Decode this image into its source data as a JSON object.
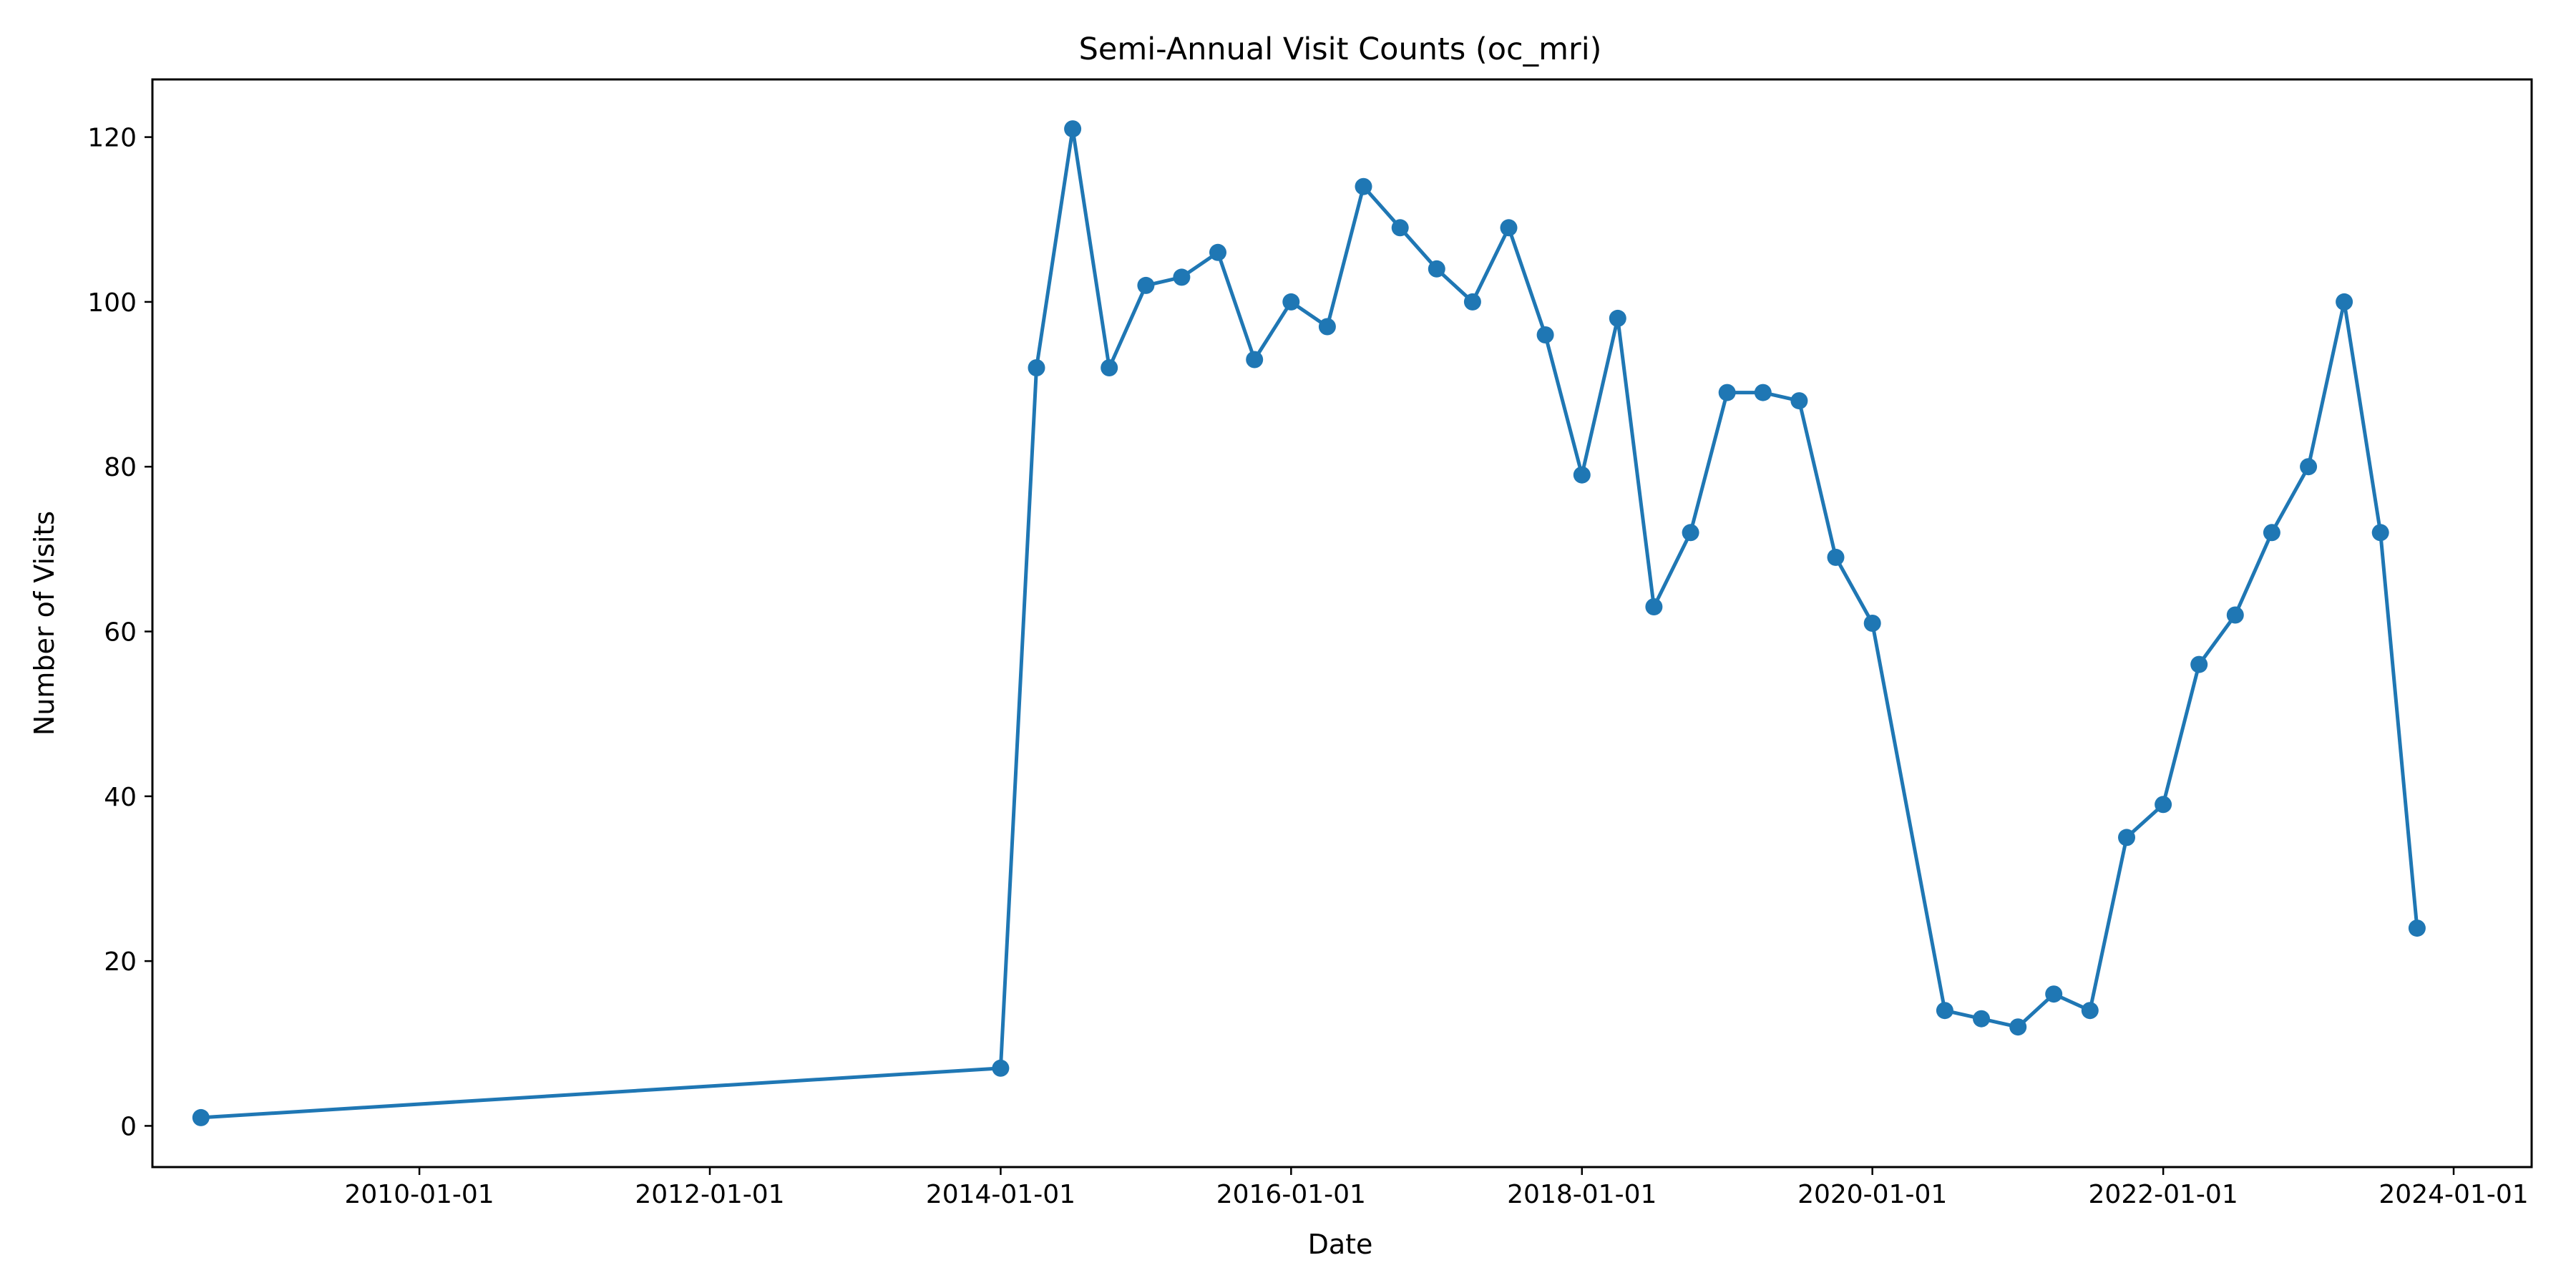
{
  "chart_data": {
    "type": "line",
    "title": "Semi-Annual Visit Counts (oc_mri)",
    "xlabel": "Date",
    "ylabel": "Number of Visits",
    "color": "#1f77b4",
    "x_tick_labels": [
      "2010-01-01",
      "2012-01-01",
      "2014-01-01",
      "2016-01-01",
      "2018-01-01",
      "2020-01-01",
      "2022-01-01",
      "2024-01-01"
    ],
    "y_ticks": [
      0,
      20,
      40,
      60,
      80,
      100,
      120
    ],
    "ylim": [
      -5,
      127
    ],
    "xlim": [
      "2008-03-01",
      "2024-07-15"
    ],
    "grid": false,
    "series": [
      {
        "x": [
          "2008-07-01",
          "2014-01-01",
          "2014-04-01",
          "2014-07-01",
          "2014-10-01",
          "2015-01-01",
          "2015-04-01",
          "2015-07-01",
          "2015-10-01",
          "2016-01-01",
          "2016-04-01",
          "2016-07-01",
          "2016-10-01",
          "2017-01-01",
          "2017-04-01",
          "2017-07-01",
          "2017-10-01",
          "2018-01-01",
          "2018-04-01",
          "2018-07-01",
          "2018-10-01",
          "2019-01-01",
          "2019-04-01",
          "2019-07-01",
          "2019-10-01",
          "2020-01-01",
          "2020-07-01",
          "2020-10-01",
          "2021-01-01",
          "2021-04-01",
          "2021-07-01",
          "2021-10-01",
          "2022-01-01",
          "2022-04-01",
          "2022-07-01",
          "2022-10-01",
          "2023-01-01",
          "2023-04-01",
          "2023-07-01",
          "2023-10-01"
        ],
        "y": [
          1,
          7,
          92,
          121,
          92,
          102,
          103,
          106,
          93,
          100,
          97,
          114,
          109,
          104,
          100,
          109,
          96,
          79,
          98,
          63,
          72,
          89,
          89,
          88,
          69,
          61,
          14,
          13,
          12,
          16,
          14,
          35,
          39,
          56,
          62,
          72,
          80,
          100,
          72,
          24
        ]
      }
    ]
  }
}
